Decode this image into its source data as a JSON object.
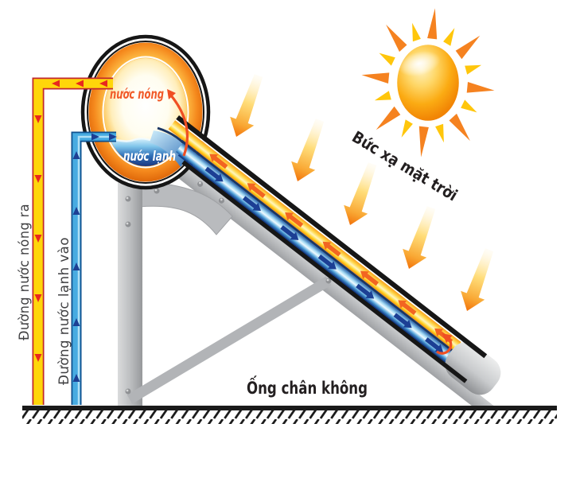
{
  "diagram": {
    "kind": "solar-water-heater-thermosiphon",
    "labels": {
      "hot_water": "nước nóng",
      "cold_water": "nước lạnh",
      "hot_out_pipe": "Đường nước nóng ra",
      "cold_in_pipe": "Đường nước lạnh vào",
      "solar_radiation": "Bức xạ mặt trời",
      "vacuum_tube": "Ống chân không"
    }
  },
  "colors": {
    "text_dark": "#231f20",
    "label_gray": "#3f3f41",
    "hot_text": "#f15a29",
    "cold_text": "#ffffff",
    "hot_accent": "#f04f23",
    "sun_ray_orange": "#f58220",
    "sun_ray_yellow": "#ffc60b",
    "flow_hot_arrow": "#f26522",
    "flow_cold_arrow": "#1c3f94",
    "pipe_hot": "#ffd60a",
    "pipe_hot_outline": "#c1272d",
    "pipe_hot_arrow": "#e8281e",
    "pipe_cold": "#47abe1",
    "pipe_cold_outline": "#0f518f",
    "pipe_cold_arrow": "#1c3f94",
    "steel_gray": "#b5b7ba",
    "ground_black": "#1a1a1a"
  }
}
